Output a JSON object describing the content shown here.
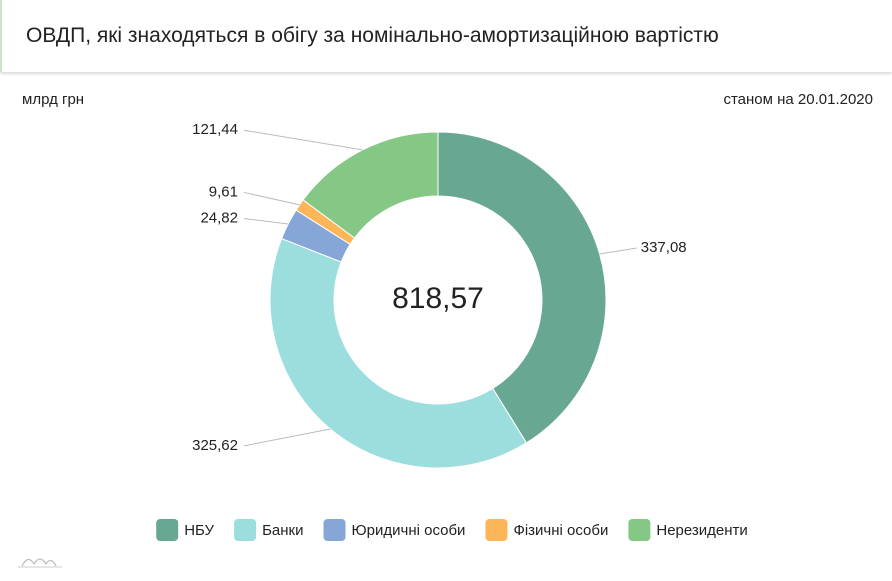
{
  "chart_data": {
    "type": "donut",
    "title": "ОВДП, які знаходяться в обігу за номінально-амортизаційною вартістю",
    "unit": "млрд грн",
    "date_note": "станом на 20.01.2020",
    "center_text": "818,57",
    "categories": [
      "НБУ",
      "Банки",
      "Юридичні особи",
      "Фізичні особи",
      "Нерезиденти"
    ],
    "values": [
      337.08,
      325.62,
      24.82,
      9.61,
      121.44
    ],
    "value_labels": [
      "337,08",
      "325,62",
      "24,82",
      "9,61",
      "121,44"
    ],
    "colors": [
      "#68a893",
      "#9bdedd",
      "#86a6d8",
      "#fdb55a",
      "#85c785"
    ],
    "legend": "bottom"
  }
}
